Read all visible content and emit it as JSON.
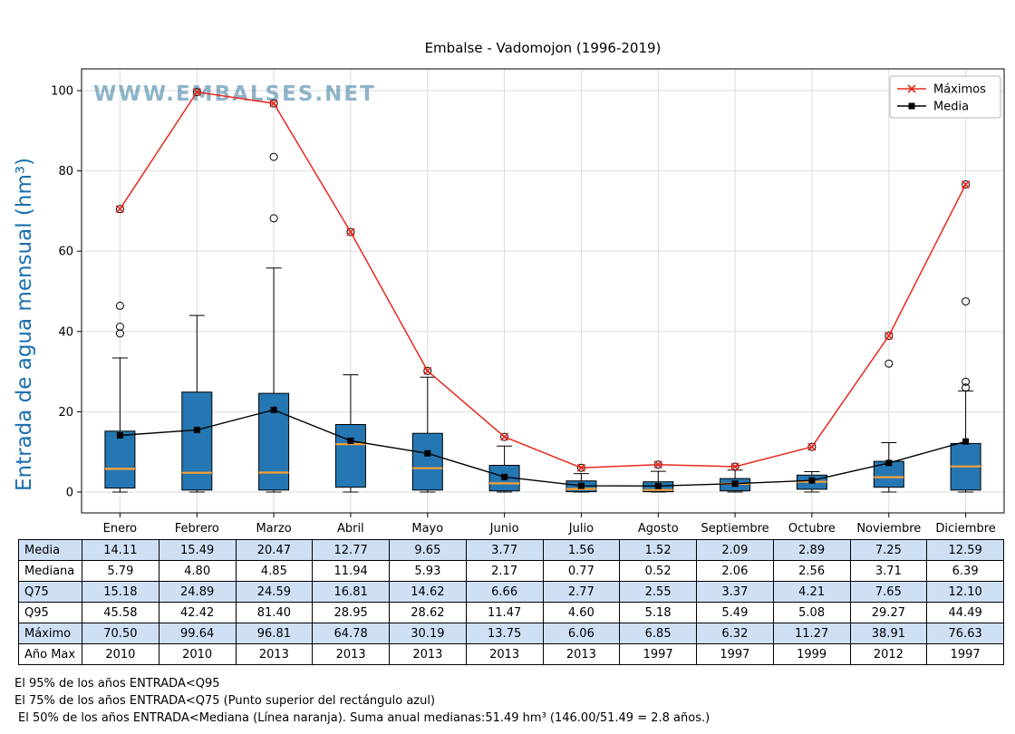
{
  "title": "Embalse - Vadomojon (1996-2019)",
  "watermark": "WWW.EMBALSES.NET",
  "ylabel": "Entrada de agua mensual (hm³)",
  "legend": {
    "maximos": "Máximos",
    "media": "Media"
  },
  "colors": {
    "box_fill": "#2477b2",
    "median": "#ffa033",
    "max_line": "#e8281e",
    "mean_line": "#000000",
    "ylabel_blue": "#1a6fae",
    "watermark": "#35789f",
    "table_row_alt": "#cfe0f5",
    "grid": "#d8d8d8"
  },
  "chart_data": {
    "type": "boxplot+line",
    "categories": [
      "Enero",
      "Febrero",
      "Marzo",
      "Abril",
      "Mayo",
      "Junio",
      "Julio",
      "Agosto",
      "Septiembre",
      "Octubre",
      "Noviembre",
      "Diciembre"
    ],
    "yticks": [
      0,
      20,
      40,
      60,
      80,
      100
    ],
    "ylim": [
      -5,
      105
    ],
    "grid": true,
    "legend_position": "upper right",
    "series": [
      {
        "name": "Máximos",
        "values": [
          70.5,
          99.64,
          96.81,
          64.78,
          30.19,
          13.75,
          6.06,
          6.85,
          6.32,
          11.27,
          38.91,
          76.63
        ]
      },
      {
        "name": "Media",
        "values": [
          14.11,
          15.49,
          20.47,
          12.77,
          9.65,
          3.77,
          1.56,
          1.52,
          2.09,
          2.89,
          7.25,
          12.59
        ]
      }
    ],
    "boxes": [
      {
        "q1": 1.0,
        "median": 5.79,
        "q3": 15.18,
        "whisker_low": 0,
        "whisker_high": 33.4,
        "outliers": [
          39.5,
          41.2,
          46.4,
          70.5
        ]
      },
      {
        "q1": 0.5,
        "median": 4.8,
        "q3": 24.89,
        "whisker_low": 0,
        "whisker_high": 44.0,
        "outliers": [
          99.64
        ]
      },
      {
        "q1": 0.5,
        "median": 4.85,
        "q3": 24.59,
        "whisker_low": 0,
        "whisker_high": 55.8,
        "outliers": [
          68.2,
          83.5,
          96.81
        ]
      },
      {
        "q1": 1.2,
        "median": 11.94,
        "q3": 16.81,
        "whisker_low": 0,
        "whisker_high": 29.2,
        "outliers": [
          64.78
        ]
      },
      {
        "q1": 0.5,
        "median": 5.93,
        "q3": 14.62,
        "whisker_low": 0,
        "whisker_high": 28.62,
        "outliers": [
          30.19
        ]
      },
      {
        "q1": 0.3,
        "median": 2.17,
        "q3": 6.66,
        "whisker_low": 0,
        "whisker_high": 11.47,
        "outliers": [
          13.75
        ]
      },
      {
        "q1": 0.1,
        "median": 0.77,
        "q3": 2.77,
        "whisker_low": 0,
        "whisker_high": 4.6,
        "outliers": [
          6.06
        ]
      },
      {
        "q1": 0.1,
        "median": 0.52,
        "q3": 2.55,
        "whisker_low": 0,
        "whisker_high": 5.18,
        "outliers": [
          6.85
        ]
      },
      {
        "q1": 0.3,
        "median": 2.06,
        "q3": 3.37,
        "whisker_low": 0,
        "whisker_high": 5.49,
        "outliers": [
          6.32
        ]
      },
      {
        "q1": 0.7,
        "median": 2.56,
        "q3": 4.21,
        "whisker_low": 0,
        "whisker_high": 5.08,
        "outliers": [
          11.27
        ]
      },
      {
        "q1": 1.2,
        "median": 3.71,
        "q3": 7.65,
        "whisker_low": 0,
        "whisker_high": 12.3,
        "outliers": [
          32.0,
          38.91
        ]
      },
      {
        "q1": 0.5,
        "median": 6.39,
        "q3": 12.1,
        "whisker_low": 0,
        "whisker_high": 25.2,
        "outliers": [
          26.0,
          27.5,
          47.5,
          76.63
        ]
      }
    ]
  },
  "table": {
    "rows": [
      {
        "label": "Media",
        "values": [
          "14.11",
          "15.49",
          "20.47",
          "12.77",
          "9.65",
          "3.77",
          "1.56",
          "1.52",
          "2.09",
          "2.89",
          "7.25",
          "12.59"
        ]
      },
      {
        "label": "Mediana",
        "values": [
          "5.79",
          "4.80",
          "4.85",
          "11.94",
          "5.93",
          "2.17",
          "0.77",
          "0.52",
          "2.06",
          "2.56",
          "3.71",
          "6.39"
        ]
      },
      {
        "label": "Q75",
        "values": [
          "15.18",
          "24.89",
          "24.59",
          "16.81",
          "14.62",
          "6.66",
          "2.77",
          "2.55",
          "3.37",
          "4.21",
          "7.65",
          "12.10"
        ]
      },
      {
        "label": "Q95",
        "values": [
          "45.58",
          "42.42",
          "81.40",
          "28.95",
          "28.62",
          "11.47",
          "4.60",
          "5.18",
          "5.49",
          "5.08",
          "29.27",
          "44.49"
        ]
      },
      {
        "label": "Máximo",
        "values": [
          "70.50",
          "99.64",
          "96.81",
          "64.78",
          "30.19",
          "13.75",
          "6.06",
          "6.85",
          "6.32",
          "11.27",
          "38.91",
          "76.63"
        ]
      },
      {
        "label": "Año Max",
        "values": [
          "2010",
          "2010",
          "2013",
          "2013",
          "2013",
          "2013",
          "2013",
          "1997",
          "1997",
          "1999",
          "2012",
          "1997"
        ]
      }
    ]
  },
  "footnotes": [
    "El 95% de los años ENTRADA<Q95",
    "El 75% de los años ENTRADA<Q75 (Punto superior del rectángulo azul)",
    "El 50% de los años ENTRADA<Mediana (Línea naranja). Suma anual medianas:51.49 hm³ (146.00/51.49 = 2.8 años.)"
  ]
}
